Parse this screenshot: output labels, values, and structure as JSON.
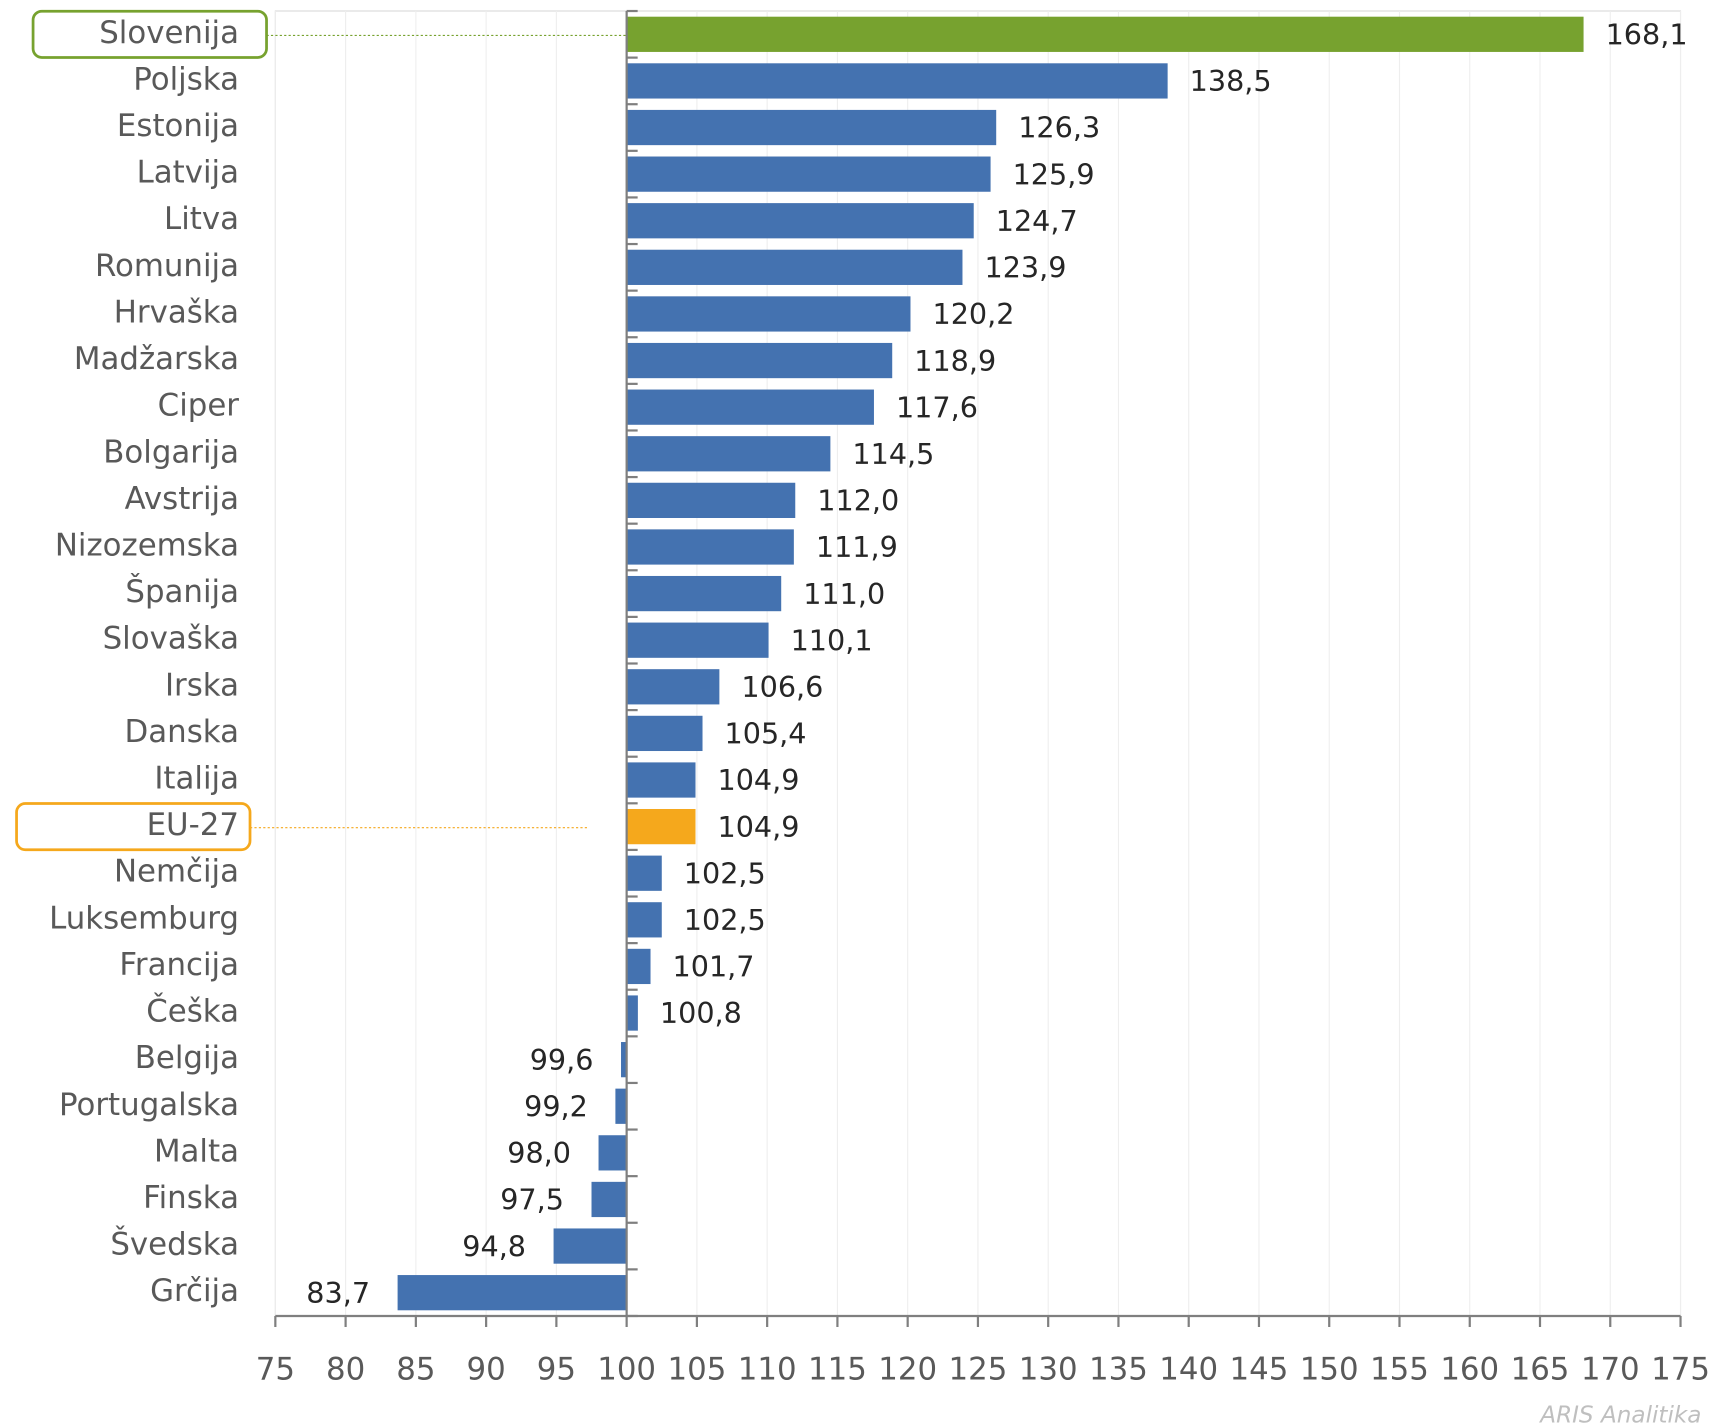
{
  "chart_data": {
    "type": "hbar",
    "categories": [
      "Slovenija",
      "Poljska",
      "Estonija",
      "Latvija",
      "Litva",
      "Romunija",
      "Hrvaška",
      "Madžarska",
      "Ciper",
      "Bolgarija",
      "Avstrija",
      "Nizozemska",
      "Španija",
      "Slovaška",
      "Irska",
      "Danska",
      "Italija",
      "EU-27",
      "Nemčija",
      "Luksemburg",
      "Francija",
      "Češka",
      "Belgija",
      "Portugalska",
      "Malta",
      "Finska",
      "Švedska",
      "Grčija"
    ],
    "values": [
      168.1,
      138.5,
      126.3,
      125.9,
      124.7,
      123.9,
      120.2,
      118.9,
      117.6,
      114.5,
      112.0,
      111.9,
      111.0,
      110.1,
      106.6,
      105.4,
      104.9,
      104.9,
      102.5,
      102.5,
      101.7,
      100.8,
      99.6,
      99.2,
      98.0,
      97.5,
      94.8,
      83.7
    ],
    "value_labels": [
      "168,1",
      "138,5",
      "126,3",
      "125,9",
      "124,7",
      "123,9",
      "120,2",
      "118,9",
      "117,6",
      "114,5",
      "112,0",
      "111,9",
      "111,0",
      "110,1",
      "106,6",
      "105,4",
      "104,9",
      "104,9",
      "102,5",
      "102,5",
      "101,7",
      "100,8",
      "99,6",
      "99,2",
      "98,0",
      "97,5",
      "94,8",
      "83,7"
    ],
    "color": "#4472b0",
    "colors": [
      "#77a22f",
      "#4472b0",
      "#4472b0",
      "#4472b0",
      "#4472b0",
      "#4472b0",
      "#4472b0",
      "#4472b0",
      "#4472b0",
      "#4472b0",
      "#4472b0",
      "#4472b0",
      "#4472b0",
      "#4472b0",
      "#4472b0",
      "#4472b0",
      "#4472b0",
      "#f5a81c",
      "#4472b0",
      "#4472b0",
      "#4472b0",
      "#4472b0",
      "#4472b0",
      "#4472b0",
      "#4472b0",
      "#4472b0",
      "#4472b0",
      "#4472b0"
    ],
    "base": 100,
    "xlim": [
      75,
      175
    ],
    "xticks": [
      75,
      80,
      85,
      90,
      95,
      100,
      105,
      110,
      115,
      120,
      125,
      130,
      135,
      140,
      145,
      150,
      155,
      160,
      165,
      170,
      175
    ],
    "grid": true,
    "credit": "ARIS Analitika"
  }
}
